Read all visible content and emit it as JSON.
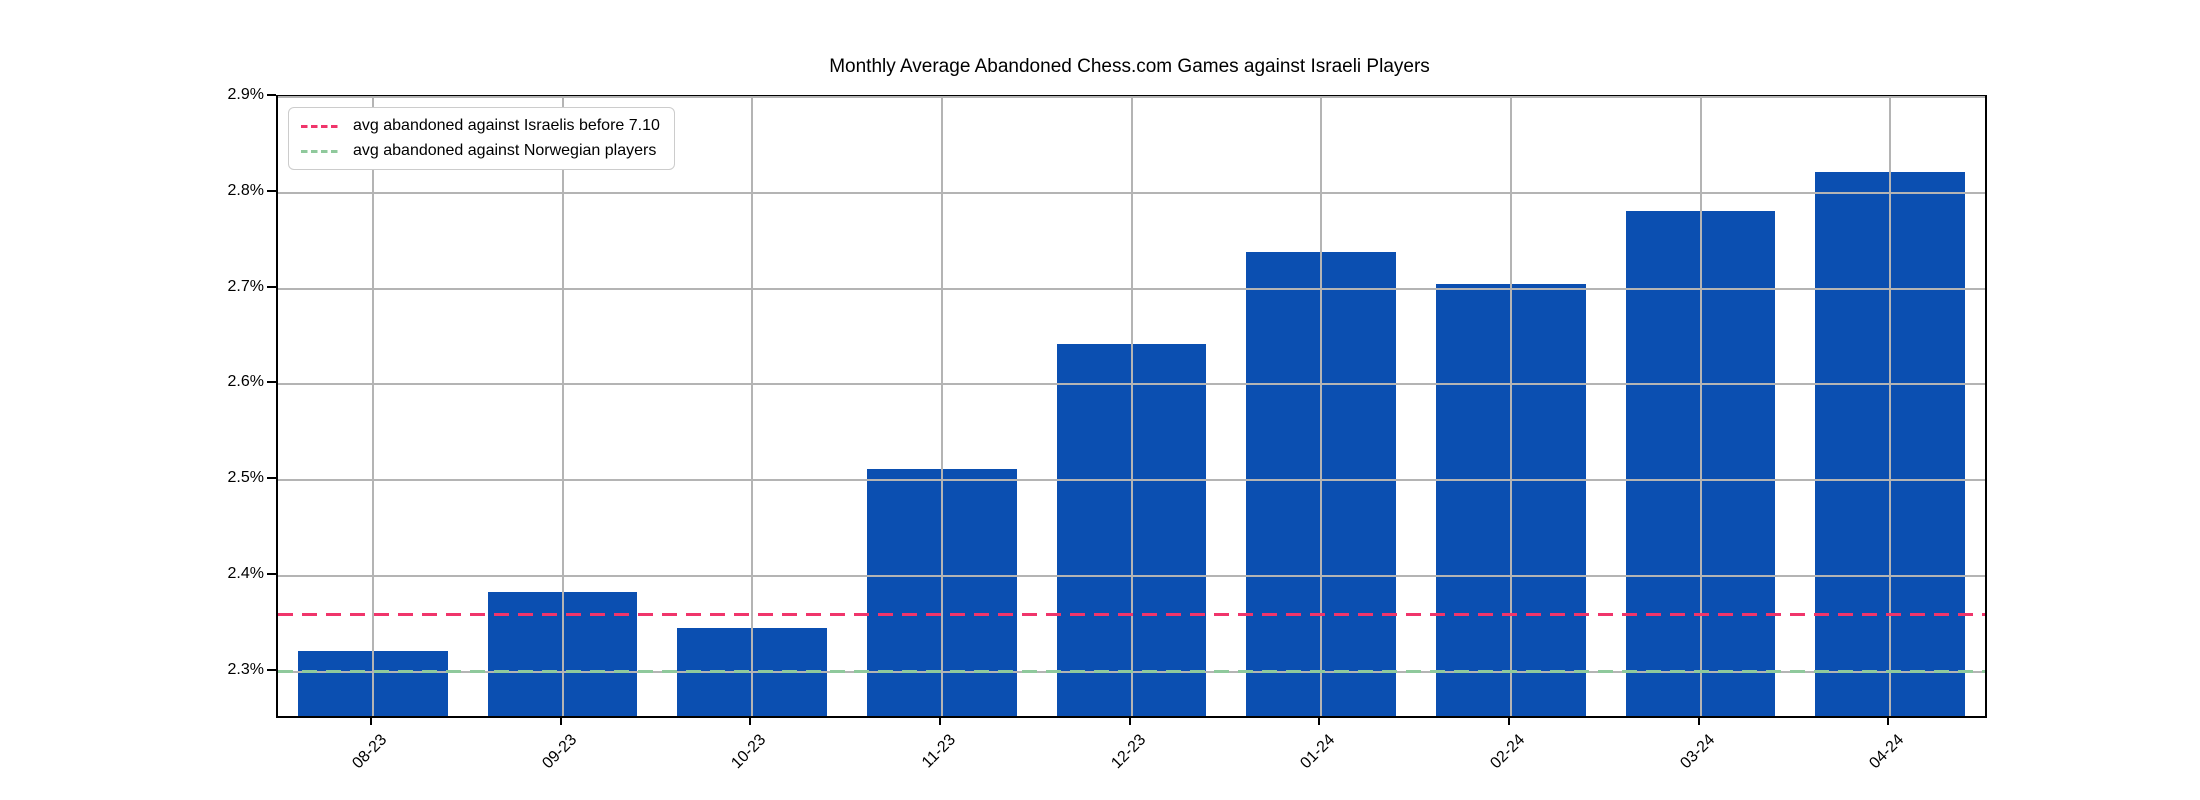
{
  "chart_data": {
    "type": "bar",
    "title": "Monthly Average Abandoned Chess.com Games against Israeli Players",
    "xlabel": "",
    "ylabel": "",
    "categories": [
      "08-23",
      "09-23",
      "10-23",
      "11-23",
      "12-23",
      "01-24",
      "02-24",
      "03-24",
      "04-24"
    ],
    "values": [
      2.322,
      2.383,
      2.346,
      2.512,
      2.642,
      2.738,
      2.705,
      2.781,
      2.822
    ],
    "unit": "%",
    "ylim": [
      2.254,
      2.9
    ],
    "yticks": [
      2.9,
      2.8,
      2.7,
      2.6,
      2.5,
      2.4,
      2.3
    ],
    "ytick_labels": [
      "2.9%",
      "2.8%",
      "2.7%",
      "2.6%",
      "2.5%",
      "2.4%",
      "2.3%"
    ],
    "grid": true,
    "grid_color": "#b4b4b4",
    "bar_color": "#0b4fb1",
    "bar_width_fraction": 0.79,
    "legend_position": "upper left",
    "reference_lines": [
      {
        "label": "avg abandoned against Israelis before 7.10",
        "value": 2.36,
        "color": "#f0356b",
        "style": "dashed"
      },
      {
        "label": "avg abandoned against Norwegian players",
        "value": 2.3,
        "color": "#8fc99c",
        "style": "dashed"
      }
    ]
  }
}
